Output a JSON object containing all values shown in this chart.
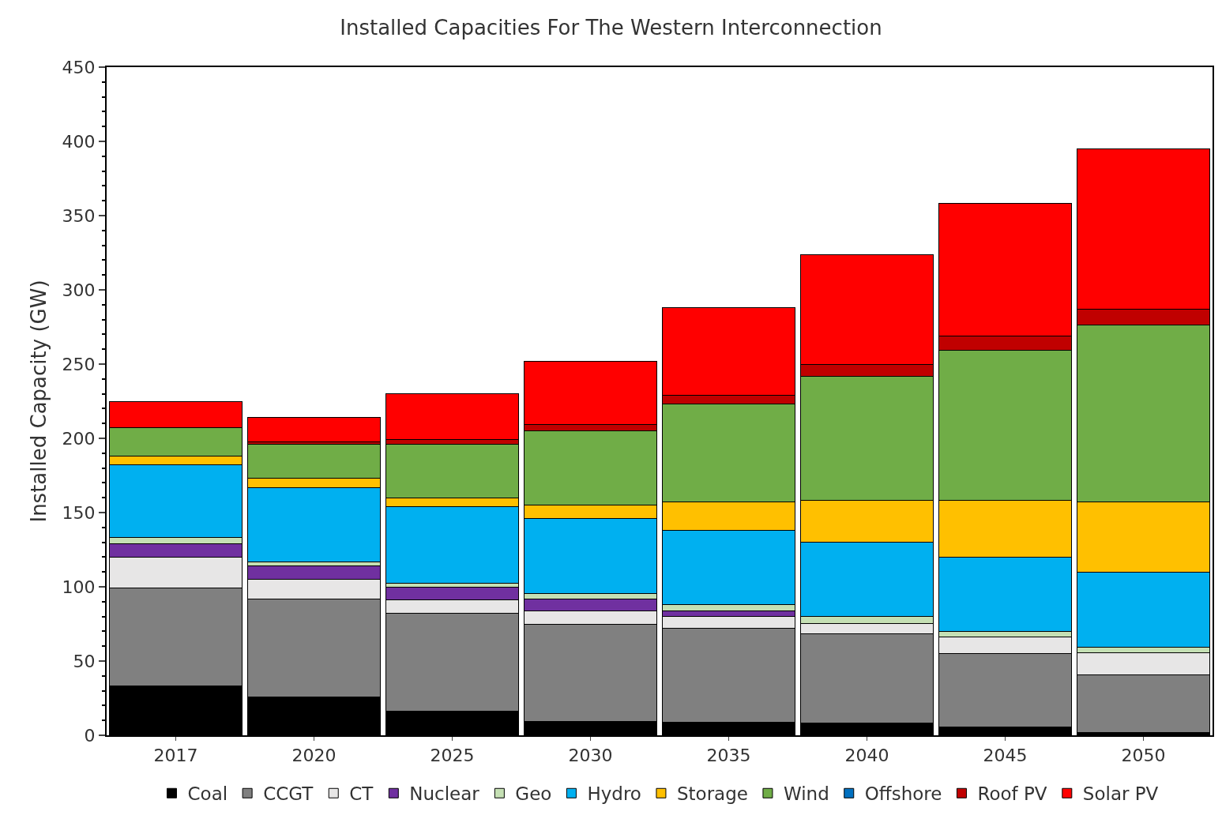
{
  "chart_data": {
    "type": "bar",
    "stacked": true,
    "title": "Installed Capacities For The Western Interconnection",
    "ylabel": "Installed Capacity (GW)",
    "categories": [
      "2017",
      "2020",
      "2025",
      "2030",
      "2035",
      "2040",
      "2045",
      "2050"
    ],
    "series": [
      {
        "name": "Coal",
        "color": "#000000",
        "values": [
          33,
          26,
          16,
          9.5,
          9,
          8.5,
          5.5,
          2
        ]
      },
      {
        "name": "CCGT",
        "color": "#808080",
        "values": [
          66,
          65.5,
          66,
          65.5,
          63,
          60,
          49.5,
          38.5
        ]
      },
      {
        "name": "CT",
        "color": "#e7e6e6",
        "values": [
          21,
          13.5,
          9,
          9,
          8,
          7,
          11,
          15
        ]
      },
      {
        "name": "Nuclear",
        "color": "#7030a0",
        "values": [
          9,
          9,
          8.5,
          7.5,
          4,
          0,
          0,
          0
        ]
      },
      {
        "name": "Geo",
        "color": "#c5e0b4",
        "values": [
          4,
          3,
          3,
          4,
          4,
          4.5,
          4,
          4
        ]
      },
      {
        "name": "Hydro",
        "color": "#00b0f0",
        "values": [
          49,
          50,
          51.5,
          50.5,
          50,
          50,
          50,
          50.5
        ]
      },
      {
        "name": "Storage",
        "color": "#ffc000",
        "values": [
          6,
          6,
          6,
          9,
          19,
          28.5,
          38,
          47
        ]
      },
      {
        "name": "Wind",
        "color": "#70ad47",
        "values": [
          19,
          23,
          36,
          50,
          66,
          83.5,
          101.5,
          119.5
        ]
      },
      {
        "name": "Offshore",
        "color": "#0070c0",
        "values": [
          0,
          0,
          0,
          0,
          0,
          0,
          0,
          0
        ]
      },
      {
        "name": "Roof PV",
        "color": "#c00000",
        "values": [
          0,
          1.5,
          3,
          4.5,
          6,
          7.5,
          9.5,
          10.5
        ]
      },
      {
        "name": "Solar PV",
        "color": "#ff0000",
        "values": [
          18,
          16.5,
          31,
          42.5,
          59,
          74,
          89,
          108
        ]
      }
    ],
    "ylim": [
      0,
      450
    ],
    "yticks": [
      0,
      50,
      100,
      150,
      200,
      250,
      300,
      350,
      400,
      450
    ],
    "grid": false,
    "legend": "bottom"
  }
}
